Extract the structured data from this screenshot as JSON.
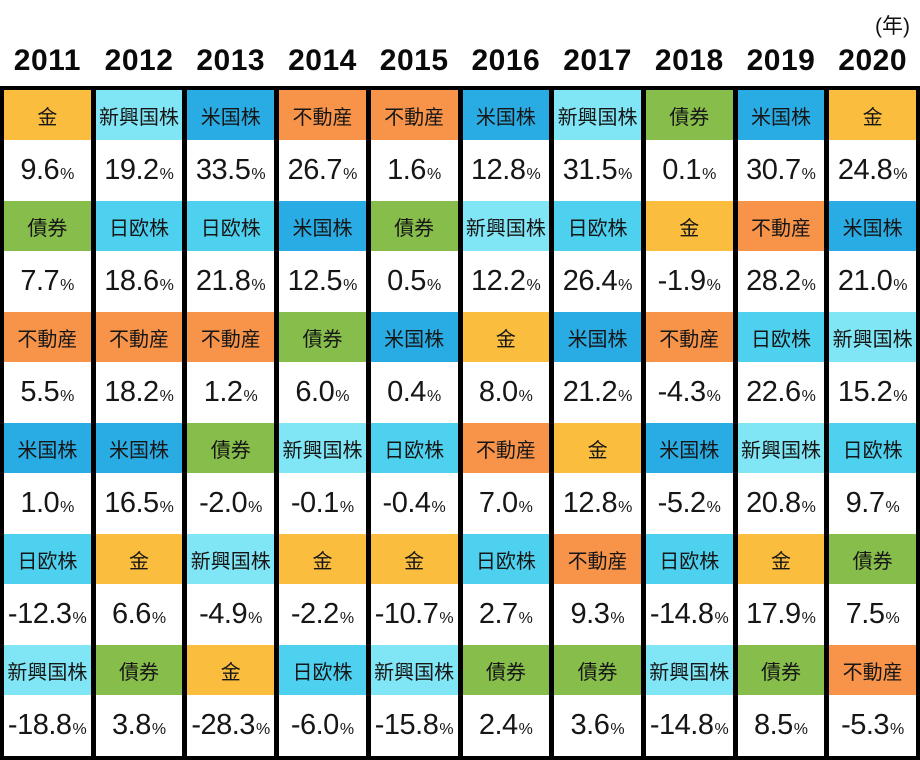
{
  "header": {
    "unit_label": "(年)"
  },
  "percent_symbol": "%",
  "asset_colors": {
    "金": "#FABD3E",
    "新興国株": "#80E5F4",
    "米国株": "#29ACE4",
    "不動産": "#F8944A",
    "債券": "#87BD4B",
    "日欧株": "#4ED0EF"
  },
  "chart_data": {
    "type": "table",
    "title": "",
    "unit": "(年)",
    "legend_position": "none",
    "description_of_content": "Yearly ranking table of asset class returns (%), one column per year, six asset classes ranked top to bottom by return",
    "assets": [
      "金",
      "新興国株",
      "米国株",
      "不動産",
      "債券",
      "日欧株"
    ],
    "columns": [
      {
        "year": "2011",
        "ranking": [
          {
            "asset": "金",
            "value": "9.6"
          },
          {
            "asset": "債券",
            "value": "7.7"
          },
          {
            "asset": "不動産",
            "value": "5.5"
          },
          {
            "asset": "米国株",
            "value": "1.0"
          },
          {
            "asset": "日欧株",
            "value": "-12.3"
          },
          {
            "asset": "新興国株",
            "value": "-18.8"
          }
        ]
      },
      {
        "year": "2012",
        "ranking": [
          {
            "asset": "新興国株",
            "value": "19.2"
          },
          {
            "asset": "日欧株",
            "value": "18.6"
          },
          {
            "asset": "不動産",
            "value": "18.2"
          },
          {
            "asset": "米国株",
            "value": "16.5"
          },
          {
            "asset": "金",
            "value": "6.6"
          },
          {
            "asset": "債券",
            "value": "3.8"
          }
        ]
      },
      {
        "year": "2013",
        "ranking": [
          {
            "asset": "米国株",
            "value": "33.5"
          },
          {
            "asset": "日欧株",
            "value": "21.8"
          },
          {
            "asset": "不動産",
            "value": "1.2"
          },
          {
            "asset": "債券",
            "value": "-2.0"
          },
          {
            "asset": "新興国株",
            "value": "-4.9"
          },
          {
            "asset": "金",
            "value": "-28.3"
          }
        ]
      },
      {
        "year": "2014",
        "ranking": [
          {
            "asset": "不動産",
            "value": "26.7"
          },
          {
            "asset": "米国株",
            "value": "12.5"
          },
          {
            "asset": "債券",
            "value": "6.0"
          },
          {
            "asset": "新興国株",
            "value": "-0.1"
          },
          {
            "asset": "金",
            "value": "-2.2"
          },
          {
            "asset": "日欧株",
            "value": "-6.0"
          }
        ]
      },
      {
        "year": "2015",
        "ranking": [
          {
            "asset": "不動産",
            "value": "1.6"
          },
          {
            "asset": "債券",
            "value": "0.5"
          },
          {
            "asset": "米国株",
            "value": "0.4"
          },
          {
            "asset": "日欧株",
            "value": "-0.4"
          },
          {
            "asset": "金",
            "value": "-10.7"
          },
          {
            "asset": "新興国株",
            "value": "-15.8"
          }
        ]
      },
      {
        "year": "2016",
        "ranking": [
          {
            "asset": "米国株",
            "value": "12.8"
          },
          {
            "asset": "新興国株",
            "value": "12.2"
          },
          {
            "asset": "金",
            "value": "8.0"
          },
          {
            "asset": "不動産",
            "value": "7.0"
          },
          {
            "asset": "日欧株",
            "value": "2.7"
          },
          {
            "asset": "債券",
            "value": "2.4"
          }
        ]
      },
      {
        "year": "2017",
        "ranking": [
          {
            "asset": "新興国株",
            "value": "31.5"
          },
          {
            "asset": "日欧株",
            "value": "26.4"
          },
          {
            "asset": "米国株",
            "value": "21.2"
          },
          {
            "asset": "金",
            "value": "12.8"
          },
          {
            "asset": "不動産",
            "value": "9.3"
          },
          {
            "asset": "債券",
            "value": "3.6"
          }
        ]
      },
      {
        "year": "2018",
        "ranking": [
          {
            "asset": "債券",
            "value": "0.1"
          },
          {
            "asset": "金",
            "value": "-1.9"
          },
          {
            "asset": "不動産",
            "value": "-4.3"
          },
          {
            "asset": "米国株",
            "value": "-5.2"
          },
          {
            "asset": "日欧株",
            "value": "-14.8"
          },
          {
            "asset": "新興国株",
            "value": "-14.8"
          }
        ]
      },
      {
        "year": "2019",
        "ranking": [
          {
            "asset": "米国株",
            "value": "30.7"
          },
          {
            "asset": "不動産",
            "value": "28.2"
          },
          {
            "asset": "日欧株",
            "value": "22.6"
          },
          {
            "asset": "新興国株",
            "value": "20.8"
          },
          {
            "asset": "金",
            "value": "17.9"
          },
          {
            "asset": "債券",
            "value": "8.5"
          }
        ]
      },
      {
        "year": "2020",
        "ranking": [
          {
            "asset": "金",
            "value": "24.8"
          },
          {
            "asset": "米国株",
            "value": "21.0"
          },
          {
            "asset": "新興国株",
            "value": "15.2"
          },
          {
            "asset": "日欧株",
            "value": "9.7"
          },
          {
            "asset": "債券",
            "value": "7.5"
          },
          {
            "asset": "不動産",
            "value": "-5.3"
          }
        ]
      }
    ]
  }
}
